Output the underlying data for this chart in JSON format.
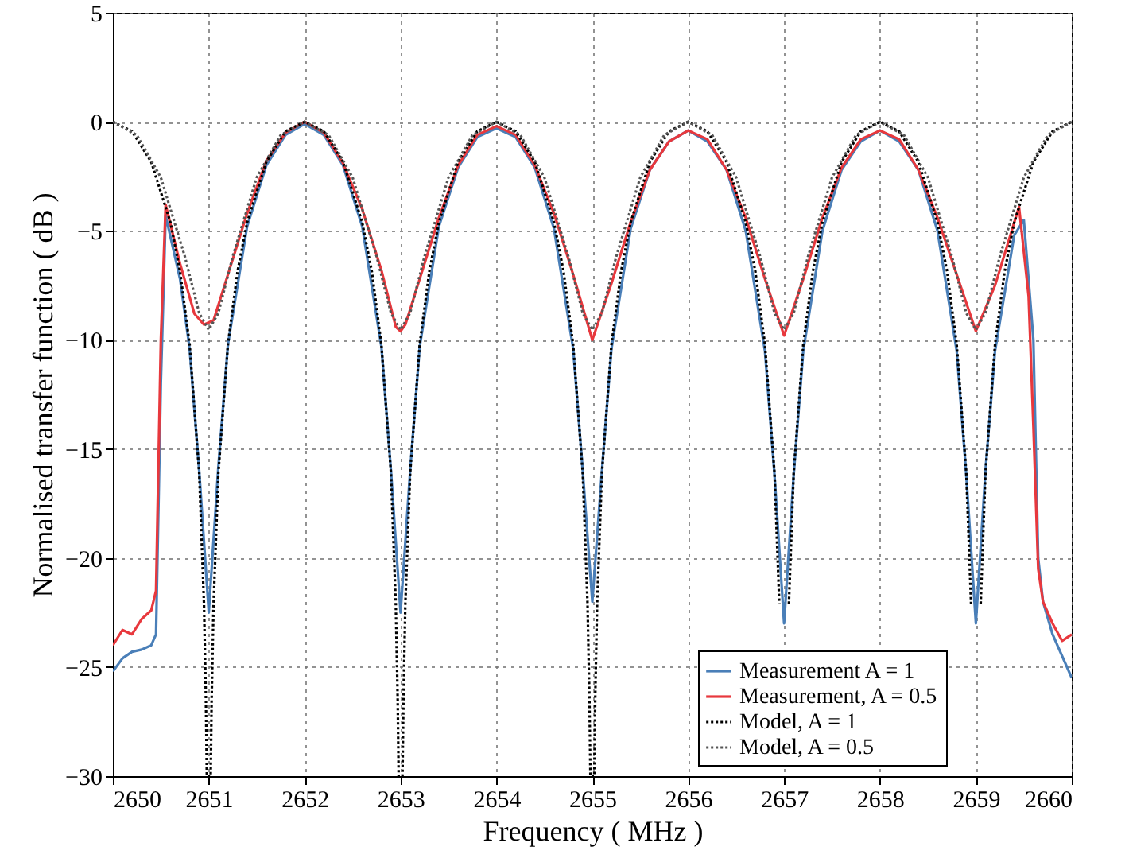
{
  "chart_data": {
    "type": "line",
    "xlabel": "Frequency ( MHz )",
    "ylabel": "Normalised transfer function ( dB )",
    "xlim": [
      2650,
      2660
    ],
    "xticks": [
      2650,
      2651,
      2652,
      2653,
      2654,
      2655,
      2656,
      2657,
      2658,
      2659,
      2660
    ],
    "ylim": [
      -30,
      5
    ],
    "yticks": [
      -30,
      -25,
      -20,
      -15,
      -10,
      -5,
      0,
      5
    ],
    "grid": true,
    "legend": "bottom right",
    "series": [
      {
        "name": "Measurement A = 1",
        "color": "#4a7fb8",
        "line_style": "solid",
        "x": [
          2650,
          2650.1,
          2650.2,
          2650.3,
          2650.4,
          2650.45,
          2650.5,
          2650.55,
          2650.7,
          2650.8,
          2650.9,
          2651,
          2651.1,
          2651.2,
          2651.4,
          2651.6,
          2651.8,
          2652,
          2652.2,
          2652.4,
          2652.6,
          2652.8,
          2652.9,
          2653,
          2653.1,
          2653.2,
          2653.4,
          2653.6,
          2653.8,
          2654,
          2654.2,
          2654.4,
          2654.6,
          2654.8,
          2654.9,
          2655,
          2655.1,
          2655.2,
          2655.4,
          2655.6,
          2655.8,
          2656,
          2656.2,
          2656.4,
          2656.6,
          2656.8,
          2656.9,
          2657,
          2657.1,
          2657.2,
          2657.4,
          2657.6,
          2657.8,
          2658,
          2658.2,
          2658.4,
          2658.6,
          2658.8,
          2658.9,
          2659,
          2659.1,
          2659.2,
          2659.4,
          2659.5,
          2659.6,
          2659.65,
          2659.7,
          2659.8,
          2659.9,
          2660
        ],
        "values": [
          -25.2,
          -24.6,
          -24.3,
          -24.2,
          -24,
          -23.5,
          -12,
          -4.3,
          -7.2,
          -10.4,
          -16,
          -22.5,
          -15.8,
          -10.2,
          -4.8,
          -2,
          -0.6,
          -0.1,
          -0.6,
          -2,
          -4.8,
          -10.3,
          -16,
          -22.5,
          -16,
          -10.3,
          -4.8,
          -2.1,
          -0.7,
          -0.3,
          -0.7,
          -2.1,
          -4.9,
          -10.4,
          -16,
          -22,
          -16,
          -10.4,
          -4.9,
          -2.2,
          -0.9,
          -0.4,
          -0.9,
          -2.2,
          -5,
          -10.5,
          -16.2,
          -23,
          -16.2,
          -10.5,
          -5,
          -2.2,
          -0.9,
          -0.4,
          -0.9,
          -2.2,
          -5,
          -10.5,
          -16.2,
          -23,
          -16,
          -10.5,
          -5.2,
          -4.5,
          -10,
          -20,
          -22,
          -23.5,
          -24.5,
          -25.5
        ]
      },
      {
        "name": "Measurement, A = 0.5",
        "color": "#e8383d",
        "line_style": "solid",
        "x": [
          2650,
          2650.1,
          2650.2,
          2650.3,
          2650.4,
          2650.45,
          2650.5,
          2650.55,
          2650.7,
          2650.85,
          2650.95,
          2651.05,
          2651.2,
          2651.4,
          2651.6,
          2651.8,
          2652,
          2652.2,
          2652.4,
          2652.6,
          2652.8,
          2652.95,
          2653,
          2653.05,
          2653.2,
          2653.4,
          2653.6,
          2653.8,
          2654,
          2654.2,
          2654.4,
          2654.6,
          2654.8,
          2655,
          2655.2,
          2655.4,
          2655.6,
          2655.8,
          2656,
          2656.2,
          2656.4,
          2656.6,
          2656.8,
          2657,
          2657.2,
          2657.4,
          2657.6,
          2657.8,
          2658,
          2658.2,
          2658.4,
          2658.6,
          2658.8,
          2659,
          2659.2,
          2659.45,
          2659.55,
          2659.6,
          2659.65,
          2659.7,
          2659.8,
          2659.9,
          2660
        ],
        "values": [
          -24,
          -23.3,
          -23.5,
          -22.8,
          -22.4,
          -21.5,
          -10,
          -3.8,
          -6.5,
          -8.8,
          -9.3,
          -9.1,
          -7,
          -4.2,
          -1.8,
          -0.5,
          0,
          -0.5,
          -1.9,
          -4,
          -6.8,
          -9.4,
          -9.6,
          -9.3,
          -7.2,
          -4.4,
          -2,
          -0.6,
          -0.2,
          -0.6,
          -2,
          -4.2,
          -7,
          -10,
          -7.4,
          -4.6,
          -2.2,
          -0.9,
          -0.4,
          -0.8,
          -2.2,
          -4.4,
          -7.2,
          -9.8,
          -7.2,
          -4.4,
          -2.1,
          -0.8,
          -0.4,
          -0.8,
          -2.2,
          -4.4,
          -7,
          -9.6,
          -7.5,
          -3.9,
          -8,
          -14,
          -20.5,
          -22,
          -23,
          -23.8,
          -23.5
        ]
      },
      {
        "name": "Model, A = 1",
        "color": "#000000",
        "line_style": "dotted",
        "x": [
          2650,
          2650.2,
          2650.4,
          2650.6,
          2650.7,
          2650.8,
          2650.9,
          2650.95,
          2650.97,
          2650.98,
          2651.02,
          2651.03,
          2651.05,
          2651.1,
          2651.2,
          2651.3,
          2651.4,
          2651.6,
          2651.8,
          2652,
          2652.2,
          2652.4,
          2652.6,
          2652.7,
          2652.8,
          2652.9,
          2652.95,
          2652.97,
          2652.98,
          2653.02,
          2653.03,
          2653.05,
          2653.1,
          2653.2,
          2653.3,
          2653.4,
          2653.6,
          2653.8,
          2654,
          2654.2,
          2654.4,
          2654.6,
          2654.7,
          2654.8,
          2654.9,
          2654.95,
          2654.97,
          2654.98,
          2655.02,
          2655.03,
          2655.05,
          2655.1,
          2655.2,
          2655.3,
          2655.4,
          2655.6,
          2655.8,
          2656,
          2656.2,
          2656.4,
          2656.6,
          2656.7,
          2656.8,
          2656.9,
          2656.95,
          2656.97,
          2656.98,
          2657.02,
          2657.03,
          2657.05,
          2657.1,
          2657.2,
          2657.3,
          2657.4,
          2657.6,
          2657.8,
          2658,
          2658.2,
          2658.4,
          2658.6,
          2658.7,
          2658.8,
          2658.9,
          2658.95,
          2658.97,
          2658.98,
          2659.02,
          2659.03,
          2659.05,
          2659.1,
          2659.2,
          2659.3,
          2659.4,
          2659.6,
          2659.8,
          2660
        ],
        "values": [
          0,
          -0.44,
          -1.84,
          -4.61,
          -6.86,
          -10.2,
          -16.1,
          -22.1,
          -26.5,
          -30,
          -30,
          -26.5,
          -22.1,
          -16.1,
          -10.2,
          -6.86,
          -4.61,
          -1.84,
          -0.44,
          0,
          -0.44,
          -1.84,
          -4.61,
          -6.86,
          -10.2,
          -16.1,
          -22.1,
          -26.5,
          -30,
          -30,
          -26.5,
          -22.1,
          -16.1,
          -10.2,
          -6.86,
          -4.61,
          -1.84,
          -0.44,
          0,
          -0.44,
          -1.84,
          -4.61,
          -6.86,
          -10.2,
          -16.1,
          -22.1,
          -26.5,
          -30,
          -30,
          -26.5,
          -22.1,
          -16.1,
          -10.2,
          -6.86,
          -4.61,
          -1.84,
          -0.44,
          0,
          -0.44,
          -1.84,
          -4.61,
          -6.86,
          -10.2,
          -16.1,
          -22.1,
          null,
          null,
          null,
          null,
          -22.1,
          -16.1,
          -10.2,
          -6.86,
          -4.61,
          -1.84,
          -0.44,
          0,
          -0.44,
          -1.84,
          -4.61,
          -6.86,
          -10.2,
          -16.1,
          -22.1,
          null,
          null,
          null,
          null,
          -22.1,
          -16.1,
          -10.2,
          -6.86,
          -4.61,
          -1.84,
          -0.44,
          0
        ]
      },
      {
        "name": "Model, A = 0.5",
        "color": "#555555",
        "line_style": "dotted",
        "x": [
          2650,
          2650.25,
          2650.5,
          2650.75,
          2650.9,
          2651,
          2651.1,
          2651.25,
          2651.5,
          2651.75,
          2652,
          2652.25,
          2652.5,
          2652.75,
          2652.9,
          2653,
          2653.1,
          2653.25,
          2653.5,
          2653.75,
          2654,
          2654.25,
          2654.5,
          2654.75,
          2654.9,
          2655,
          2655.1,
          2655.25,
          2655.5,
          2655.75,
          2656,
          2656.25,
          2656.5,
          2656.75,
          2656.9,
          2657,
          2657.1,
          2657.25,
          2657.5,
          2657.75,
          2658,
          2658.25,
          2658.5,
          2658.75,
          2658.9,
          2659,
          2659.1,
          2659.25,
          2659.5,
          2659.75,
          2660
        ],
        "values": [
          0,
          -0.61,
          -2.55,
          -6.17,
          -8.77,
          -9.54,
          -8.77,
          -6.17,
          -2.55,
          -0.61,
          0,
          -0.61,
          -2.55,
          -6.17,
          -8.77,
          -9.54,
          -8.77,
          -6.17,
          -2.55,
          -0.61,
          0,
          -0.61,
          -2.55,
          -6.17,
          -8.77,
          -9.54,
          -8.77,
          -6.17,
          -2.55,
          -0.61,
          0,
          -0.61,
          -2.55,
          -6.17,
          -8.77,
          -9.54,
          -8.77,
          -6.17,
          -2.55,
          -0.61,
          0,
          -0.61,
          -2.55,
          -6.17,
          -8.77,
          -9.54,
          -8.77,
          -6.17,
          -2.55,
          -0.61,
          0
        ]
      }
    ]
  }
}
